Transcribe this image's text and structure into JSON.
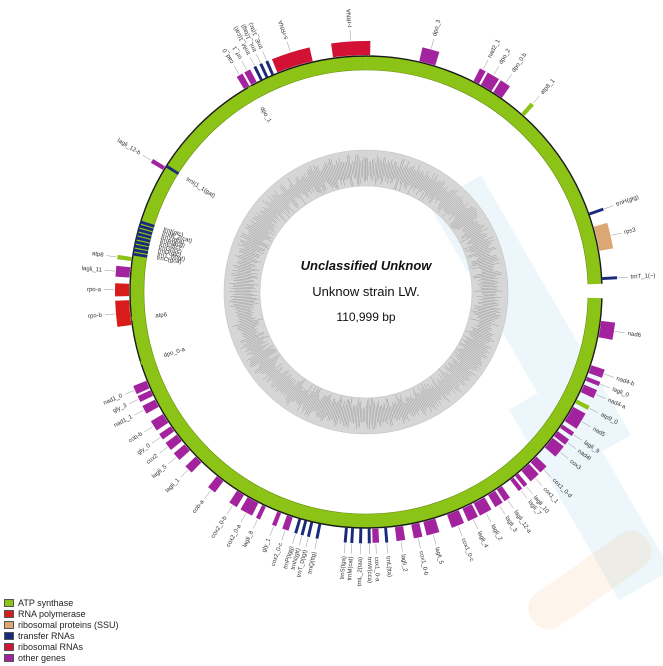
{
  "map": {
    "title": "Unclassified Unknow",
    "strain": "Unknow strain LW.",
    "length": "110,999 bp"
  },
  "colors": {
    "atp": "#8cc317",
    "rnap": "#d81b1b",
    "ssu": "#dba874",
    "trna": "#1a2a7a",
    "rrna": "#d21134",
    "other": "#a3239f",
    "gc_ring": "#bdbdbd"
  },
  "legend": [
    {
      "label": "ATP synthase",
      "color": "#8cc317"
    },
    {
      "label": "RNA polymerase",
      "color": "#d81b1b"
    },
    {
      "label": "ribosomal proteins (SSU)",
      "color": "#dba874"
    },
    {
      "label": "transfer RNAs",
      "color": "#1a2a7a"
    },
    {
      "label": "ribosomal RNAs",
      "color": "#d21134"
    },
    {
      "label": "other genes",
      "color": "#a3239f"
    }
  ],
  "genes": [
    {
      "name": "r-rRNA",
      "cat": "rrna",
      "a0": -8,
      "a1": 1,
      "out": true
    },
    {
      "name": "s-rRNA",
      "cat": "rrna",
      "a0": -22,
      "a1": -13,
      "out": true
    },
    {
      "name": "trnL_1(tag)",
      "cat": "trna",
      "a0": -25,
      "a1": -24.5,
      "out": true
    },
    {
      "name": "trnE_1(ttc)",
      "cat": "trna",
      "a0": -23.5,
      "a1": -23,
      "out": true
    },
    {
      "name": "trnM_1(cat)",
      "cat": "trna",
      "a0": -26.5,
      "a1": -26,
      "out": true
    },
    {
      "name": "orf_1",
      "cat": "other",
      "a0": -29,
      "a1": -27.5,
      "out": true
    },
    {
      "name": "cad_0",
      "cat": "other",
      "a0": -31,
      "a1": -29.5,
      "out": true
    },
    {
      "name": "dpo_3",
      "cat": "other",
      "a0": 13,
      "a1": 17,
      "out": true
    },
    {
      "name": "nad2_1",
      "cat": "other",
      "a0": 27,
      "a1": 28.5,
      "out": true
    },
    {
      "name": "dpo_2",
      "cat": "other",
      "a0": 29,
      "a1": 32,
      "out": true
    },
    {
      "name": "dpo_0.b",
      "cat": "other",
      "a0": 32.5,
      "a1": 35,
      "out": true
    },
    {
      "name": "atp8_1",
      "cat": "atp",
      "a0": 41,
      "a1": 42,
      "out": true
    },
    {
      "name": "trnH(gtg)",
      "cat": "trna",
      "a0": 70.5,
      "a1": 71,
      "out": true
    },
    {
      "name": "rps3",
      "cat": "ssu",
      "a0": 74,
      "a1": 80,
      "out": true
    },
    {
      "name": "trnT_1(~)",
      "cat": "trna",
      "a0": 86.5,
      "a1": 87,
      "out": true
    },
    {
      "name": "nad6",
      "cat": "other",
      "a0": 97,
      "a1": 101,
      "out": true
    },
    {
      "name": "nad4-b",
      "cat": "other",
      "a0": 108,
      "a1": 110,
      "out": true
    },
    {
      "name": "lagli_0",
      "cat": "other",
      "a0": 111,
      "a1": 112,
      "out": true
    },
    {
      "name": "nad4-a",
      "cat": "other",
      "a0": 113,
      "a1": 115,
      "out": true
    },
    {
      "name": "atp9_0",
      "cat": "atp",
      "a0": 117,
      "a1": 118,
      "out": true
    },
    {
      "name": "nad5",
      "cat": "other",
      "a0": 119,
      "a1": 123,
      "out": true
    },
    {
      "name": "lagli_9",
      "cat": "other",
      "a0": 124,
      "a1": 125,
      "out": true
    },
    {
      "name": "nad4l",
      "cat": "other",
      "a0": 126,
      "a1": 127.5,
      "out": true
    },
    {
      "name": "cox3",
      "cat": "other",
      "a0": 128,
      "a1": 131,
      "out": true
    },
    {
      "name": "cox1_0-d",
      "cat": "other",
      "a0": 134,
      "a1": 136,
      "out": true
    },
    {
      "name": "cox1_1",
      "cat": "other",
      "a0": 136.5,
      "a1": 139,
      "out": true
    },
    {
      "name": "lagli_10",
      "cat": "other",
      "a0": 140,
      "a1": 141,
      "out": true
    },
    {
      "name": "lagli_7",
      "cat": "other",
      "a0": 141.5,
      "a1": 142.5,
      "out": true
    },
    {
      "name": "lagli_12-a",
      "cat": "other",
      "a0": 145,
      "a1": 146.5,
      "out": true
    },
    {
      "name": "lagli_3",
      "cat": "other",
      "a0": 147,
      "a1": 149,
      "out": true
    },
    {
      "name": "lagli_2",
      "cat": "other",
      "a0": 150,
      "a1": 153,
      "out": true
    },
    {
      "name": "lagli_4",
      "cat": "other",
      "a0": 153.5,
      "a1": 156,
      "out": true
    },
    {
      "name": "cox1_0-c",
      "cat": "other",
      "a0": 157,
      "a1": 160,
      "out": true
    },
    {
      "name": "lagli_5",
      "cat": "other",
      "a0": 163,
      "a1": 166,
      "out": true
    },
    {
      "name": "cox1_0-b",
      "cat": "other",
      "a0": 167,
      "a1": 169,
      "out": true
    },
    {
      "name": "lagli_2",
      "cat": "other",
      "a0": 171,
      "a1": 173,
      "out": true
    },
    {
      "name": "trnL(tta)",
      "cat": "trna",
      "a0": 175,
      "a1": 175.5,
      "out": true
    },
    {
      "name": "cox1_0-a",
      "cat": "other",
      "a0": 177,
      "a1": 178.5,
      "out": true
    },
    {
      "name": "trnW(cca)",
      "cat": "trna",
      "a0": 179,
      "a1": 179.5,
      "out": true
    },
    {
      "name": "trnL_2(taa)",
      "cat": "trna",
      "a0": 181,
      "a1": 181.5,
      "out": true
    },
    {
      "name": "trnM(cat)",
      "cat": "trna",
      "a0": 183,
      "a1": 183.5,
      "out": true
    },
    {
      "name": "trnS(tga)",
      "cat": "trna",
      "a0": 184.5,
      "a1": 185,
      "out": true
    },
    {
      "name": "trnQ(ttg)",
      "cat": "trna",
      "a0": 191,
      "a1": 191.5,
      "out": true
    },
    {
      "name": "trnT_0(tgt)",
      "cat": "trna",
      "a0": 193,
      "a1": 193.5,
      "out": true
    },
    {
      "name": "trnN(gtt)",
      "cat": "trna",
      "a0": 194.5,
      "a1": 195,
      "out": true
    },
    {
      "name": "trnP(tgg)",
      "cat": "trna",
      "a0": 196,
      "a1": 196.5,
      "out": true
    },
    {
      "name": "cox2_0-c",
      "cat": "other",
      "a0": 198,
      "a1": 199.5,
      "out": true
    },
    {
      "name": "gly_1",
      "cat": "other",
      "a0": 201,
      "a1": 202,
      "out": true
    },
    {
      "name": "lagli_8",
      "cat": "other",
      "a0": 205,
      "a1": 206,
      "out": true
    },
    {
      "name": "cox2_0-a",
      "cat": "other",
      "a0": 207,
      "a1": 210,
      "out": true
    },
    {
      "name": "cox2_0-b",
      "cat": "other",
      "a0": 211,
      "a1": 213,
      "out": true
    },
    {
      "name": "cob-a",
      "cat": "other",
      "a0": 217,
      "a1": 219,
      "out": true
    },
    {
      "name": "lagli_1",
      "cat": "other",
      "a0": 224,
      "a1": 226,
      "out": true
    },
    {
      "name": "lagli_5",
      "cat": "other",
      "a0": 228,
      "a1": 230,
      "out": true
    },
    {
      "name": "cox2",
      "cat": "other",
      "a0": 231,
      "a1": 233,
      "out": true
    },
    {
      "name": "gly_0",
      "cat": "other",
      "a0": 234,
      "a1": 235.5,
      "out": true
    },
    {
      "name": "cob-b",
      "cat": "other",
      "a0": 236.5,
      "a1": 239,
      "out": true
    },
    {
      "name": "nad1_1",
      "cat": "other",
      "a0": 241,
      "a1": 243,
      "out": true
    },
    {
      "name": "gly_3",
      "cat": "other",
      "a0": 244,
      "a1": 245.5,
      "out": true
    },
    {
      "name": "nad1_0",
      "cat": "other",
      "a0": 246,
      "a1": 248,
      "out": true
    },
    {
      "name": "rpo-b",
      "cat": "rnap",
      "a0": 262,
      "a1": 268,
      "out": true
    },
    {
      "name": "rpo-a",
      "cat": "rnap",
      "a0": 269,
      "a1": 272,
      "out": true
    },
    {
      "name": "lagli_11",
      "cat": "other",
      "a0": 273.5,
      "a1": 276,
      "out": true
    },
    {
      "name": "atp8",
      "cat": "atp",
      "a0": 277.5,
      "a1": 278.5,
      "out": true
    },
    {
      "name": "lagli_12-b",
      "cat": "other",
      "a0": 301,
      "a1": 302,
      "out": true
    },
    {
      "name": "dpo_1",
      "cat": "atp",
      "a0": 330,
      "a1": 331,
      "out": false
    },
    {
      "name": "trnI(1_1(gat)",
      "cat": "trna",
      "a0": 302,
      "a1": 302.5,
      "out": false
    },
    {
      "name": "trnI(gtc)",
      "cat": "trna",
      "a0": 287,
      "a1": 287.5,
      "out": false
    },
    {
      "name": "trnM_2(cat)",
      "cat": "trna",
      "a0": 286,
      "a1": 286.5,
      "out": false
    },
    {
      "name": "trnY(gta)",
      "cat": "trna",
      "a0": 285,
      "a1": 285.5,
      "out": false
    },
    {
      "name": "trnR(acg)",
      "cat": "trna",
      "a0": 284,
      "a1": 284.5,
      "out": false
    },
    {
      "name": "trnE(ttc)",
      "cat": "trna",
      "a0": 283,
      "a1": 283.5,
      "out": false
    },
    {
      "name": "trnG(tcc)",
      "cat": "trna",
      "a0": 282,
      "a1": 282.5,
      "out": false
    },
    {
      "name": "trnD(gtc)",
      "cat": "trna",
      "a0": 281,
      "a1": 281.5,
      "out": false
    },
    {
      "name": "trnT_0(tgt)",
      "cat": "trna",
      "a0": 280,
      "a1": 280.5,
      "out": false
    },
    {
      "name": "trnC(gca)",
      "cat": "trna",
      "a0": 279,
      "a1": 279.5,
      "out": false
    },
    {
      "name": "atp6",
      "cat": "atp",
      "a0": 263,
      "a1": 264,
      "out": false
    },
    {
      "name": "dpo_0-a",
      "cat": "atp",
      "a0": 252,
      "a1": 253,
      "out": false
    }
  ]
}
